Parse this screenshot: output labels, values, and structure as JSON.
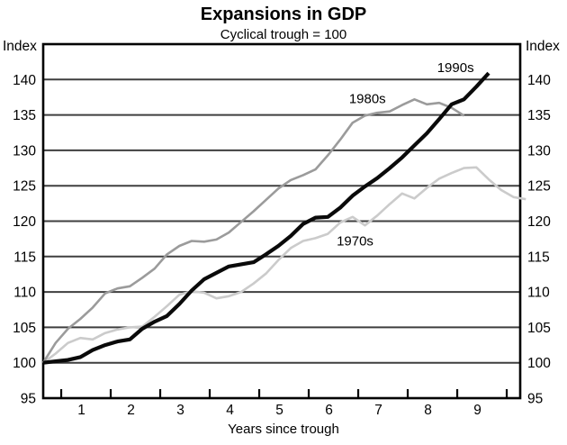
{
  "page": {
    "title": "Expansions in GDP",
    "subtitle": "Cyclical trough = 100"
  },
  "chart_data": {
    "type": "line",
    "title": "Expansions in GDP",
    "subtitle": "Cyclical trough = 100",
    "xlabel": "Years since trough",
    "y_axis_label_left": "Index",
    "y_axis_label_right": "Index",
    "ylim": [
      95,
      145
    ],
    "xlim": [
      0,
      9.636
    ],
    "grid_on": true,
    "ytick_values": [
      95,
      100,
      105,
      110,
      115,
      120,
      125,
      130,
      135,
      140
    ],
    "gridline_values": [
      100,
      105,
      110,
      115,
      120,
      125,
      130,
      135,
      140
    ],
    "xtick_positions": [
      0.364,
      1.364,
      2.364,
      3.364,
      4.364,
      5.364,
      6.364,
      7.364,
      8.364,
      9.364
    ],
    "xtick_label_positions": [
      0.773,
      1.773,
      2.773,
      3.773,
      4.773,
      5.773,
      6.773,
      7.773,
      8.773
    ],
    "xtick_labels": [
      "1",
      "2",
      "3",
      "4",
      "5",
      "6",
      "7",
      "8",
      "9"
    ],
    "x_step_years": 0.25,
    "grid_color": "#3f3f3f",
    "frame_color": "#000000",
    "series": [
      {
        "name": "1970s",
        "color": "#cbcbcb",
        "stroke_width": 2.6,
        "x_start": 0,
        "values": [
          100,
          101.3,
          102.8,
          103.5,
          103.3,
          104.2,
          104.7,
          105.0,
          105.1,
          106.5,
          108.0,
          109.6,
          110.1,
          109.9,
          109.1,
          109.4,
          110.0,
          111.2,
          112.6,
          114.5,
          116.2,
          117.2,
          117.6,
          118.2,
          119.8,
          120.6,
          119.4,
          120.8,
          122.4,
          123.9,
          123.2,
          124.7,
          126.0,
          126.8,
          127.5,
          127.6,
          125.9,
          124.4,
          123.4,
          123.1
        ]
      },
      {
        "name": "1980s",
        "color": "#9b9b9b",
        "stroke_width": 2.6,
        "x_start": 0,
        "values": [
          100,
          102.8,
          104.8,
          106.2,
          107.8,
          109.8,
          110.5,
          110.8,
          112.0,
          113.3,
          115.3,
          116.5,
          117.2,
          117.1,
          117.4,
          118.4,
          119.9,
          121.4,
          123.0,
          124.6,
          125.8,
          126.5,
          127.3,
          129.3,
          131.5,
          133.9,
          134.9,
          135.3,
          135.5,
          136.4,
          137.2,
          136.5,
          136.7,
          136.0,
          134.9
        ]
      },
      {
        "name": "1990s",
        "color": "#0a0a0a",
        "stroke_width": 4.2,
        "x_start": 0,
        "values": [
          100,
          100.2,
          100.4,
          100.8,
          101.8,
          102.5,
          103.0,
          103.3,
          104.8,
          105.8,
          106.6,
          108.3,
          110.2,
          111.8,
          112.7,
          113.6,
          113.9,
          114.2,
          115.3,
          116.5,
          117.9,
          119.6,
          120.5,
          120.6,
          121.9,
          123.6,
          124.9,
          126.1,
          127.5,
          129.0,
          130.7,
          132.4,
          134.4,
          136.5,
          137.2,
          139.0,
          140.9
        ]
      }
    ],
    "annotations": [
      {
        "text": "1970s",
        "x": 6.3,
        "y": 117.2
      },
      {
        "text": "1980s",
        "x": 6.55,
        "y": 137.3
      },
      {
        "text": "1990s",
        "x": 8.33,
        "y": 141.7
      }
    ]
  }
}
